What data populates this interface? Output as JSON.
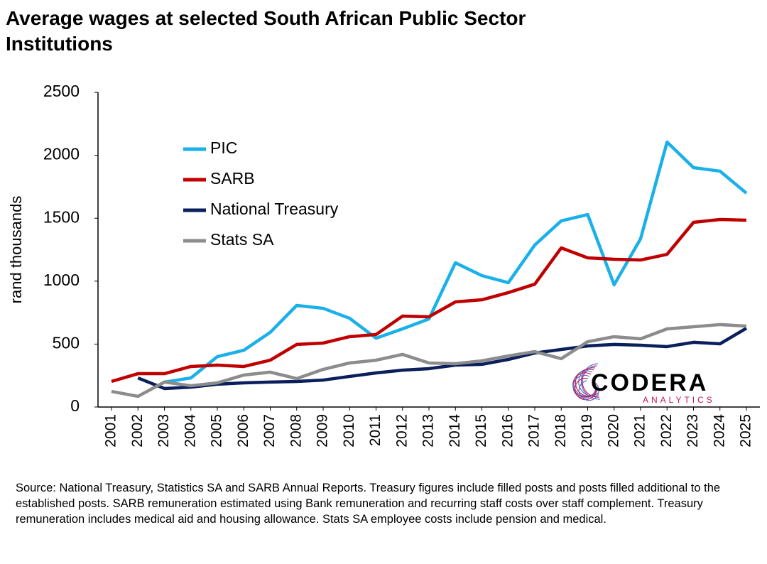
{
  "chart_data": {
    "type": "line",
    "title": "Average wages at selected South African Public Sector Institutions",
    "y_label": "rand thousands",
    "categories": [
      "2001",
      "2002",
      "2003",
      "2004",
      "2005",
      "2006",
      "2007",
      "2008",
      "2009",
      "2010",
      "2011",
      "2012",
      "2013",
      "2014",
      "2015",
      "2016",
      "2017",
      "2018",
      "2019",
      "2020",
      "2021",
      "2022",
      "2023",
      "2024",
      "2025"
    ],
    "series": [
      {
        "name": "PIC",
        "color": "#1ab0e8",
        "values": [
          null,
          null,
          198,
          231,
          400,
          451,
          593,
          807,
          784,
          705,
          547,
          621,
          700,
          1146,
          1044,
          988,
          1287,
          1479,
          1529,
          971,
          1337,
          2105,
          1902,
          1874,
          1699
        ]
      },
      {
        "name": "SARB",
        "color": "#c00000",
        "values": [
          203,
          265,
          265,
          322,
          333,
          322,
          372,
          497,
          508,
          559,
          576,
          722,
          717,
          835,
          852,
          909,
          976,
          1264,
          1185,
          1174,
          1168,
          1213,
          1467,
          1490,
          1484
        ]
      },
      {
        "name": "National Treasury",
        "color": "#0a1f5c",
        "values": [
          null,
          231,
          147,
          158,
          181,
          192,
          198,
          203,
          214,
          243,
          271,
          293,
          305,
          333,
          339,
          378,
          429,
          457,
          485,
          497,
          491,
          480,
          514,
          502,
          626
        ]
      },
      {
        "name": "Stats SA",
        "color": "#8c8c8c",
        "values": [
          124,
          85,
          198,
          169,
          192,
          254,
          277,
          226,
          299,
          350,
          372,
          418,
          350,
          344,
          367,
          406,
          440,
          384,
          519,
          559,
          542,
          621,
          638,
          655,
          643
        ]
      }
    ],
    "ylim": [
      0,
      2500
    ],
    "yticks": [
      0,
      500,
      1000,
      1500,
      2000,
      2500
    ],
    "grid": false,
    "legend": "upper left",
    "logo": {
      "name": "CODERA",
      "tagline": "ANALYTICS"
    },
    "source": "Source: National Treasury, Statistics SA and SARB Annual Reports. Treasury figures include filled posts and posts filled additional to the established posts. SARB remuneration estimated using Bank remuneration and recurring staff costs over staff complement. Treasury remuneration includes medical aid and housing allowance. Stats SA employee costs include pension and medical."
  }
}
